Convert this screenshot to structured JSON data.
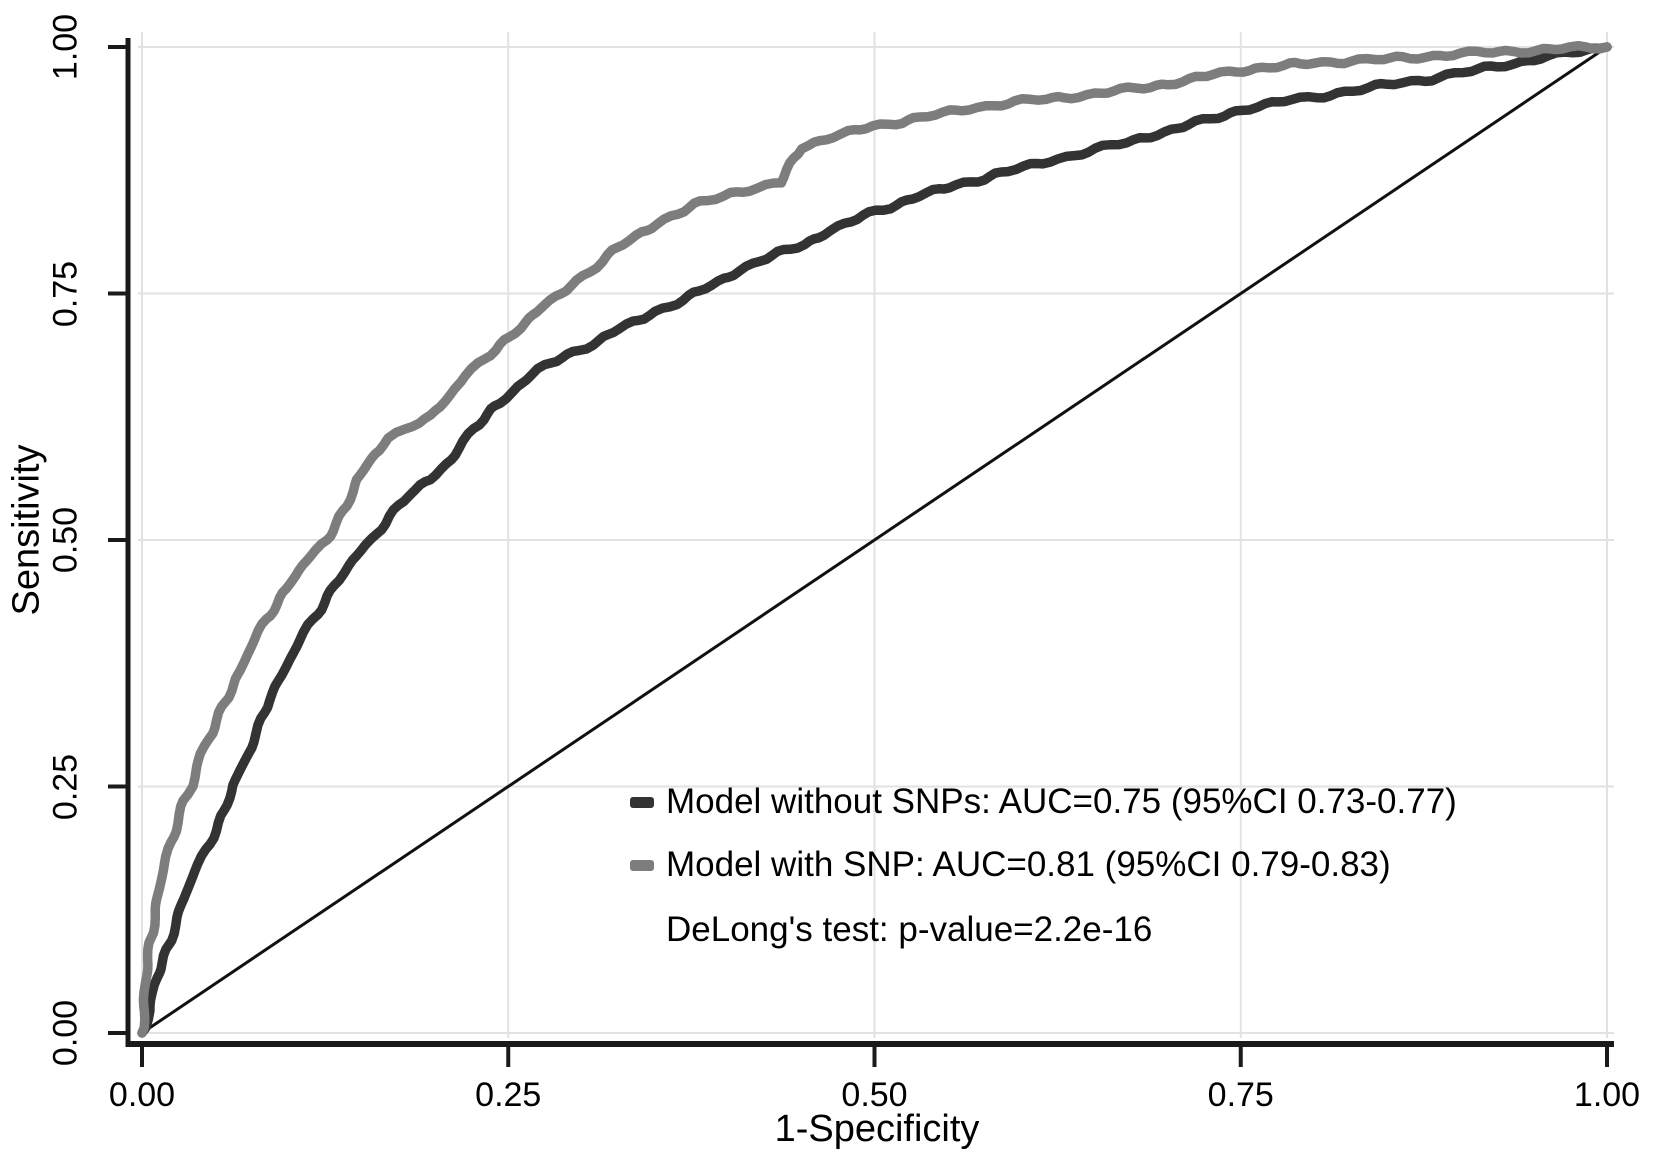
{
  "chart_data": {
    "type": "line",
    "subtype": "roc-curve",
    "title": "",
    "xlabel": "1-Specificity",
    "ylabel": "Sensitivity",
    "xlim": [
      0,
      1
    ],
    "ylim": [
      0,
      1
    ],
    "grid": true,
    "grid_color": "#e2e2e2",
    "axis_color": "#1a1a1a",
    "x_ticks": [
      0,
      0.25,
      0.5,
      0.75,
      1
    ],
    "y_ticks": [
      0,
      0.25,
      0.5,
      0.75,
      1
    ],
    "x_tick_labels": [
      "0.00",
      "0.25",
      "0.50",
      "0.75",
      "1.00"
    ],
    "y_tick_labels": [
      "0.00",
      "0.25",
      "0.50",
      "0.75",
      "1.00"
    ],
    "reference_line": {
      "from": [
        0,
        0
      ],
      "to": [
        1,
        1
      ],
      "color": "#111111",
      "width": 3
    },
    "legend_position": "inside-bottom-right",
    "annotation": "DeLong's test: p-value=2.2e-16",
    "series": [
      {
        "name": "Model without SNPs",
        "label": "Model without SNPs: AUC=0.75 (95%CI 0.73-0.77)",
        "auc": "0.75",
        "ci_95": "0.73-0.77",
        "color": "#333333",
        "points": [
          [
            0,
            0
          ],
          [
            0.005,
            0.022
          ],
          [
            0.009,
            0.048
          ],
          [
            0.013,
            0.065
          ],
          [
            0.019,
            0.096
          ],
          [
            0.027,
            0.13
          ],
          [
            0.037,
            0.165
          ],
          [
            0.048,
            0.2
          ],
          [
            0.056,
            0.225
          ],
          [
            0.062,
            0.25
          ],
          [
            0.071,
            0.277
          ],
          [
            0.078,
            0.303
          ],
          [
            0.086,
            0.338
          ],
          [
            0.096,
            0.365
          ],
          [
            0.106,
            0.392
          ],
          [
            0.119,
            0.425
          ],
          [
            0.131,
            0.455
          ],
          [
            0.144,
            0.478
          ],
          [
            0.157,
            0.5
          ],
          [
            0.169,
            0.525
          ],
          [
            0.181,
            0.545
          ],
          [
            0.198,
            0.562
          ],
          [
            0.211,
            0.582
          ],
          [
            0.226,
            0.612
          ],
          [
            0.241,
            0.636
          ],
          [
            0.256,
            0.655
          ],
          [
            0.271,
            0.672
          ],
          [
            0.286,
            0.685
          ],
          [
            0.311,
            0.702
          ],
          [
            0.331,
            0.717
          ],
          [
            0.351,
            0.732
          ],
          [
            0.381,
            0.752
          ],
          [
            0.401,
            0.768
          ],
          [
            0.421,
            0.783
          ],
          [
            0.451,
            0.8
          ],
          [
            0.471,
            0.814
          ],
          [
            0.501,
            0.834
          ],
          [
            0.531,
            0.849
          ],
          [
            0.561,
            0.862
          ],
          [
            0.591,
            0.874
          ],
          [
            0.621,
            0.885
          ],
          [
            0.651,
            0.896
          ],
          [
            0.681,
            0.907
          ],
          [
            0.711,
            0.919
          ],
          [
            0.751,
            0.937
          ],
          [
            0.781,
            0.945
          ],
          [
            0.811,
            0.952
          ],
          [
            0.851,
            0.962
          ],
          [
            0.881,
            0.968
          ],
          [
            0.911,
            0.977
          ],
          [
            0.941,
            0.985
          ],
          [
            0.971,
            0.993
          ],
          [
            1,
            1
          ]
        ]
      },
      {
        "name": "Model with SNP",
        "label": "Model with SNP: AUC=0.81 (95%CI 0.79-0.83)",
        "auc": "0.81",
        "ci_95": "0.79-0.83",
        "color": "#7d7d7d",
        "points": [
          [
            0,
            0
          ],
          [
            0.003,
            0.05
          ],
          [
            0.005,
            0.09
          ],
          [
            0.009,
            0.125
          ],
          [
            0.014,
            0.16
          ],
          [
            0.021,
            0.2
          ],
          [
            0.028,
            0.235
          ],
          [
            0.034,
            0.25
          ],
          [
            0.041,
            0.285
          ],
          [
            0.048,
            0.305
          ],
          [
            0.056,
            0.335
          ],
          [
            0.066,
            0.365
          ],
          [
            0.076,
            0.395
          ],
          [
            0.089,
            0.43
          ],
          [
            0.101,
            0.458
          ],
          [
            0.113,
            0.478
          ],
          [
            0.126,
            0.5
          ],
          [
            0.139,
            0.535
          ],
          [
            0.147,
            0.56
          ],
          [
            0.159,
            0.588
          ],
          [
            0.169,
            0.603
          ],
          [
            0.183,
            0.615
          ],
          [
            0.197,
            0.625
          ],
          [
            0.207,
            0.643
          ],
          [
            0.222,
            0.667
          ],
          [
            0.241,
            0.693
          ],
          [
            0.254,
            0.712
          ],
          [
            0.271,
            0.732
          ],
          [
            0.286,
            0.75
          ],
          [
            0.301,
            0.768
          ],
          [
            0.321,
            0.792
          ],
          [
            0.341,
            0.812
          ],
          [
            0.361,
            0.828
          ],
          [
            0.381,
            0.842
          ],
          [
            0.401,
            0.852
          ],
          [
            0.421,
            0.857
          ],
          [
            0.436,
            0.862
          ],
          [
            0.449,
            0.899
          ],
          [
            0.468,
            0.907
          ],
          [
            0.5,
            0.92
          ],
          [
            0.531,
            0.928
          ],
          [
            0.561,
            0.937
          ],
          [
            0.601,
            0.945
          ],
          [
            0.655,
            0.953
          ],
          [
            0.701,
            0.963
          ],
          [
            0.751,
            0.977
          ],
          [
            0.801,
            0.984
          ],
          [
            0.851,
            0.988
          ],
          [
            0.901,
            0.993
          ],
          [
            0.951,
            0.997
          ],
          [
            1,
            1
          ]
        ]
      }
    ]
  }
}
